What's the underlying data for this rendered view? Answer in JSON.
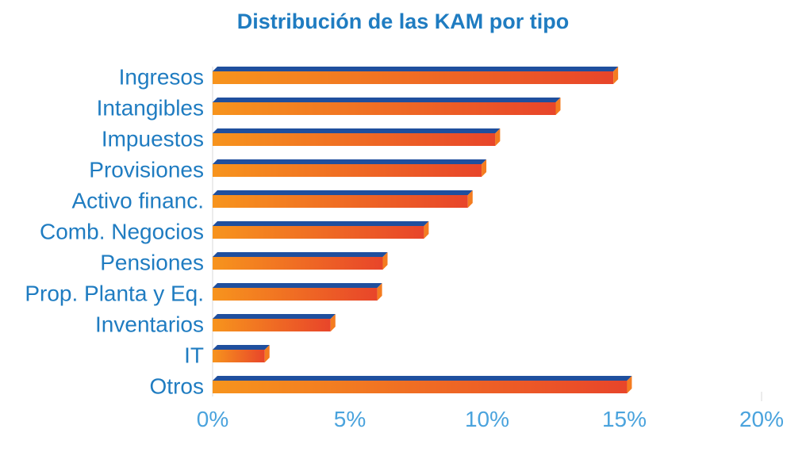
{
  "chart_data": {
    "type": "bar",
    "orientation": "horizontal",
    "title": "Distribución de las KAM por tipo",
    "xlabel": "",
    "ylabel": "",
    "categories": [
      "Ingresos",
      "Intangibles",
      "Impuestos",
      "Provisiones",
      "Activo financ.",
      "Comb. Negocios",
      "Pensiones",
      "Prop. Planta y Eq.",
      "Inventarios",
      "IT",
      "Otros"
    ],
    "values": [
      14.6,
      12.5,
      10.3,
      9.8,
      9.3,
      7.7,
      6.2,
      6.0,
      4.3,
      1.9,
      15.1
    ],
    "xlim": [
      0,
      20
    ],
    "xticks": [
      0,
      5,
      10,
      15,
      20
    ],
    "xtick_labels": [
      "0%",
      "5%",
      "10%",
      "15%",
      "20%"
    ],
    "grid": false,
    "legend": "none",
    "colors": {
      "bar_start": "#f7941d",
      "bar_end": "#e8452a",
      "bar_top": "#1f4f9e",
      "bar_side": "#f47c20",
      "label": "#1f7cc1",
      "tick": "#4aa3dd",
      "axis": "#d9d9d9"
    }
  }
}
